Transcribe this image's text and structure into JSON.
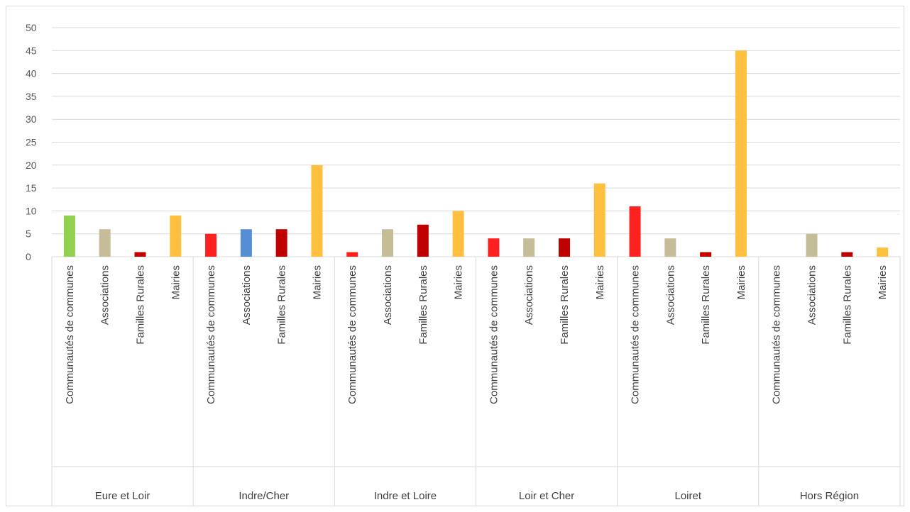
{
  "chart_data": {
    "type": "bar",
    "ylim": [
      0,
      50
    ],
    "yticks": [
      0,
      5,
      10,
      15,
      20,
      25,
      30,
      35,
      40,
      45,
      50
    ],
    "grid": true,
    "groups": [
      {
        "name": "Eure et Loir",
        "bars": [
          {
            "label": "Communautés de communes",
            "value": 9,
            "color": "#92D050"
          },
          {
            "label": "Associations",
            "value": 6,
            "color": "#C4BD97"
          },
          {
            "label": "Familles Rurales",
            "value": 1,
            "color": "#C00000"
          },
          {
            "label": "Mairies",
            "value": 9,
            "color": "#FFBF3F"
          }
        ]
      },
      {
        "name": "Indre/Cher",
        "bars": [
          {
            "label": "Communautés de communes",
            "value": 5,
            "color": "#FF2020"
          },
          {
            "label": "Associations",
            "value": 6,
            "color": "#558ED5"
          },
          {
            "label": "Familles Rurales",
            "value": 6,
            "color": "#C00000"
          },
          {
            "label": "Mairies",
            "value": 20,
            "color": "#FFBF3F"
          }
        ]
      },
      {
        "name": "Indre et Loire",
        "bars": [
          {
            "label": "Communautés de communes",
            "value": 1,
            "color": "#FF2020"
          },
          {
            "label": "Associations",
            "value": 6,
            "color": "#C4BD97"
          },
          {
            "label": "Familles Rurales",
            "value": 7,
            "color": "#C00000"
          },
          {
            "label": "Mairies",
            "value": 10,
            "color": "#FFBF3F"
          }
        ]
      },
      {
        "name": "Loir et Cher",
        "bars": [
          {
            "label": "Communautés de communes",
            "value": 4,
            "color": "#FF2020"
          },
          {
            "label": "Associations",
            "value": 4,
            "color": "#C4BD97"
          },
          {
            "label": "Familles Rurales",
            "value": 4,
            "color": "#C00000"
          },
          {
            "label": "Mairies",
            "value": 16,
            "color": "#FFBF3F"
          }
        ]
      },
      {
        "name": "Loiret",
        "bars": [
          {
            "label": "Communautés de communes",
            "value": 11,
            "color": "#FF2020"
          },
          {
            "label": "Associations",
            "value": 4,
            "color": "#C4BD97"
          },
          {
            "label": "Familles Rurales",
            "value": 1,
            "color": "#C00000"
          },
          {
            "label": "Mairies",
            "value": 45,
            "color": "#FFBF3F"
          }
        ]
      },
      {
        "name": "Hors Région",
        "bars": [
          {
            "label": "Communautés de communes",
            "value": 0,
            "color": "#FF2020"
          },
          {
            "label": "Associations",
            "value": 5,
            "color": "#C4BD97"
          },
          {
            "label": "Familles Rurales",
            "value": 1,
            "color": "#C00000"
          },
          {
            "label": "Mairies",
            "value": 2,
            "color": "#FFBF3F"
          }
        ]
      }
    ]
  }
}
